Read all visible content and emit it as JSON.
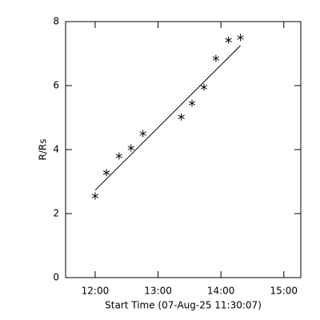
{
  "chart_data": {
    "type": "scatter",
    "xlabel": "Start Time (07-Aug-25 11:30:07)",
    "ylabel": "R/Rs",
    "x": [
      12.0,
      12.18,
      12.38,
      12.57,
      12.76,
      13.37,
      13.54,
      13.73,
      13.92,
      14.12,
      14.31
    ],
    "values": [
      2.55,
      3.28,
      3.8,
      4.05,
      4.5,
      5.02,
      5.45,
      5.95,
      6.85,
      7.42,
      7.5
    ],
    "color": "#000000",
    "fit": {
      "x": [
        12.0,
        14.31
      ],
      "values": [
        2.73,
        7.25
      ]
    },
    "xlim": [
      11.53,
      15.27
    ],
    "xticks": [
      {
        "value": 12,
        "label": "12:00"
      },
      {
        "value": 13,
        "label": "13:00"
      },
      {
        "value": 14,
        "label": "14:00"
      },
      {
        "value": 15,
        "label": "15:00"
      }
    ],
    "ylim": [
      0,
      8
    ],
    "yticks": [
      0,
      2,
      4,
      6,
      8
    ]
  }
}
